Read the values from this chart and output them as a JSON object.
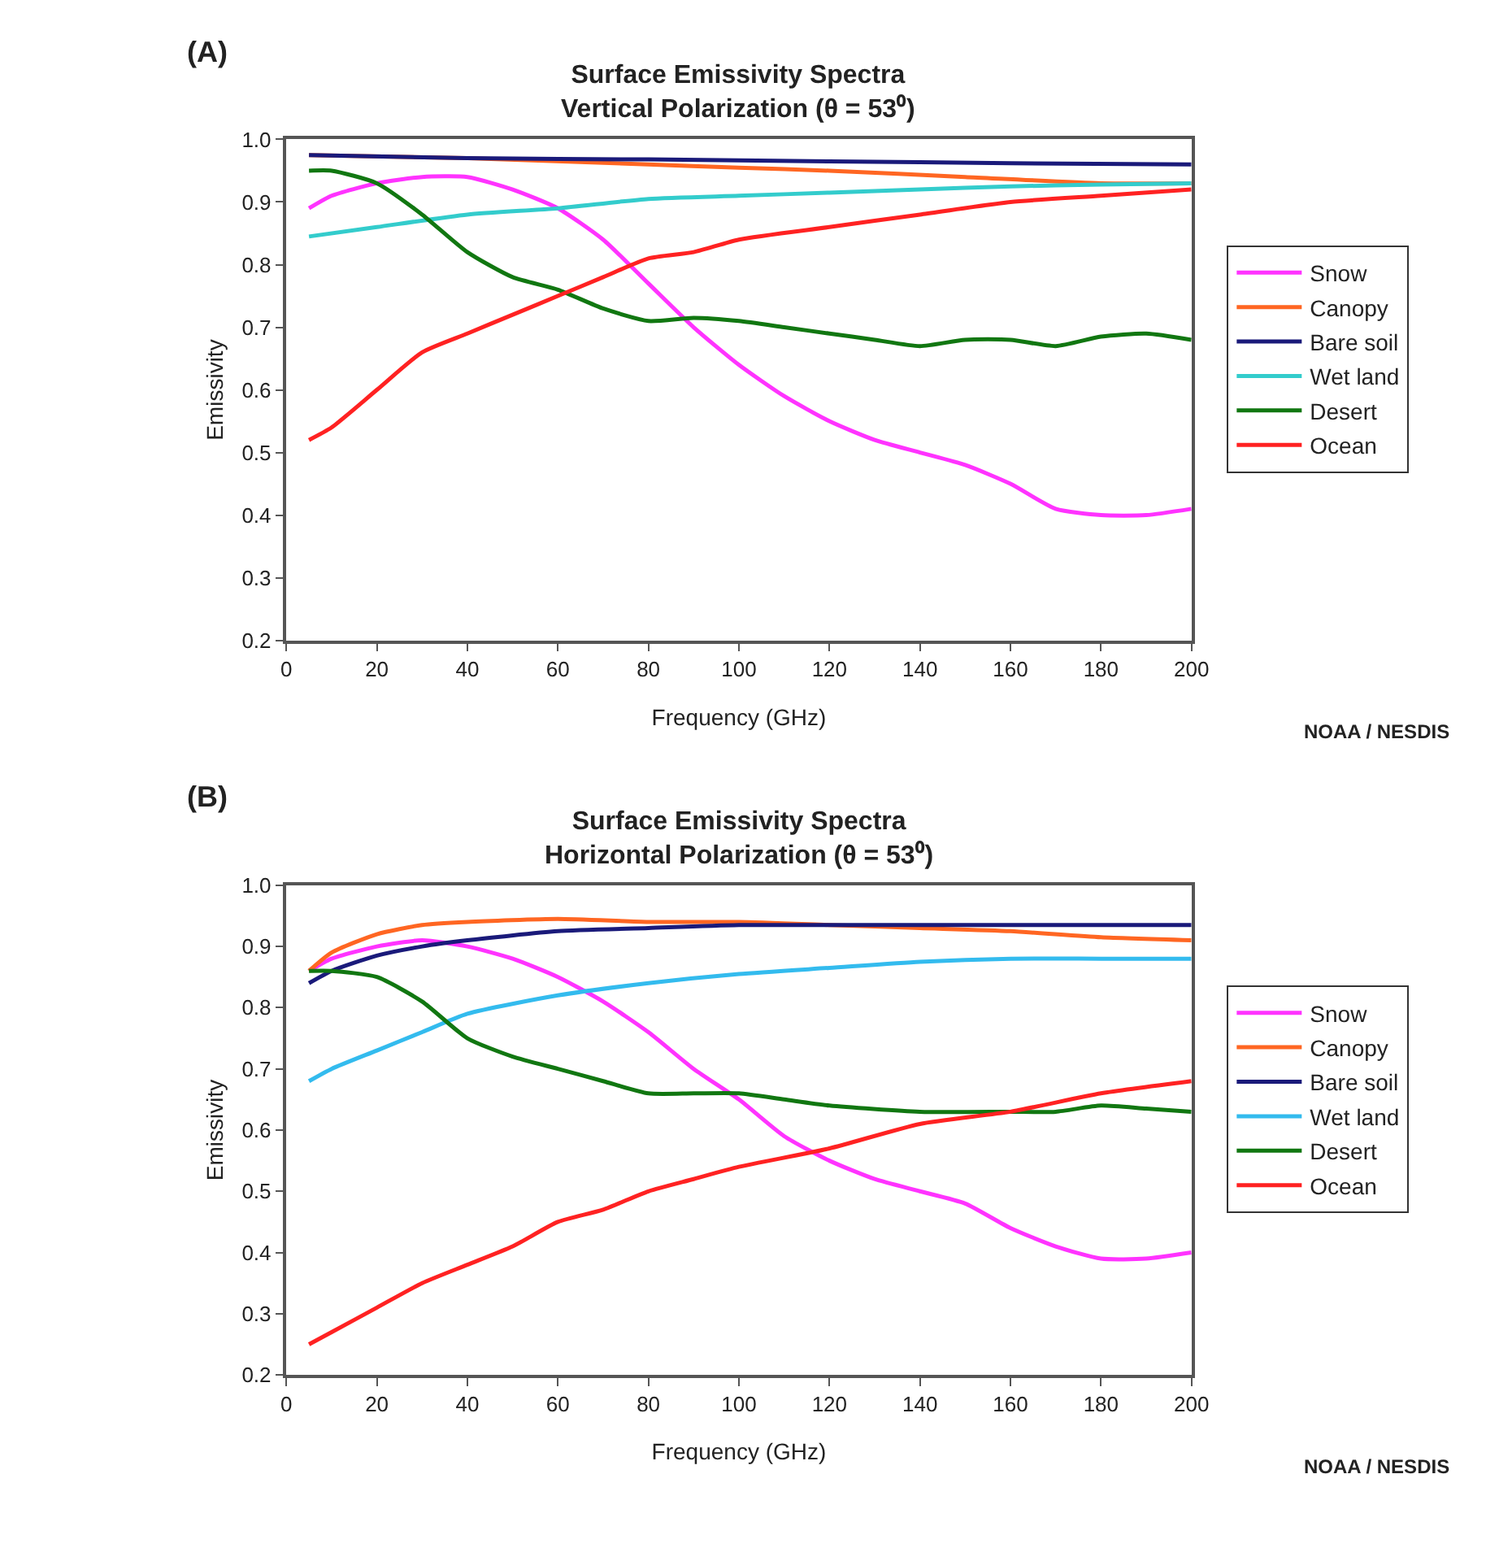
{
  "chart_data": [
    {
      "type": "line",
      "title": "Surface Emissivity Spectra\nVertical Polarization (θ = 53⁰)",
      "xlabel": "Frequency (GHz)",
      "ylabel": "Emissivity",
      "xlim": [
        0,
        200
      ],
      "ylim": [
        0.2,
        1.0
      ],
      "xticks": [
        0,
        20,
        40,
        60,
        80,
        100,
        120,
        140,
        160,
        180,
        200
      ],
      "yticks": [
        {
          "value": 0.2,
          "label": "0.2"
        },
        {
          "value": 0.3,
          "label": "0.3"
        },
        {
          "value": 0.4,
          "label": "0.4"
        },
        {
          "value": 0.5,
          "label": "0.5"
        },
        {
          "value": 0.6,
          "label": "0.6"
        },
        {
          "value": 0.7,
          "label": "0.7"
        },
        {
          "value": 0.8,
          "label": "0.8"
        },
        {
          "value": 0.9,
          "label": "0.9"
        },
        {
          "value": 1.0,
          "label": "1.0"
        }
      ],
      "legend": "right",
      "marker": "none",
      "line_style": "solid",
      "annotations": [
        "(A)",
        "NOAA / NESDIS"
      ],
      "series": [
        {
          "name": "Snow",
          "color": "#ff33ff",
          "x": [
            5,
            10,
            20,
            30,
            40,
            50,
            60,
            70,
            80,
            90,
            100,
            110,
            120,
            130,
            140,
            150,
            160,
            170,
            180,
            190,
            200
          ],
          "values": [
            0.89,
            0.91,
            0.93,
            0.94,
            0.94,
            0.92,
            0.89,
            0.84,
            0.77,
            0.7,
            0.64,
            0.59,
            0.55,
            0.52,
            0.5,
            0.48,
            0.45,
            0.41,
            0.4,
            0.4,
            0.41
          ]
        },
        {
          "name": "Canopy",
          "color": "#ff6622",
          "x": [
            5,
            40,
            80,
            100,
            120,
            150,
            180,
            200
          ],
          "values": [
            0.975,
            0.97,
            0.96,
            0.955,
            0.95,
            0.94,
            0.93,
            0.93
          ]
        },
        {
          "name": "Bare soil",
          "color": "#1a1a7a",
          "x": [
            5,
            40,
            80,
            120,
            160,
            200
          ],
          "values": [
            0.975,
            0.97,
            0.968,
            0.965,
            0.962,
            0.96
          ]
        },
        {
          "name": "Wet land",
          "color": "#33cccc",
          "x": [
            5,
            20,
            40,
            60,
            80,
            100,
            120,
            140,
            160,
            180,
            200
          ],
          "values": [
            0.845,
            0.86,
            0.88,
            0.89,
            0.905,
            0.91,
            0.915,
            0.92,
            0.925,
            0.928,
            0.93
          ]
        },
        {
          "name": "Desert",
          "color": "#117711",
          "x": [
            5,
            10,
            20,
            30,
            40,
            50,
            60,
            70,
            80,
            90,
            100,
            110,
            120,
            130,
            140,
            150,
            160,
            170,
            180,
            190,
            200
          ],
          "values": [
            0.95,
            0.95,
            0.93,
            0.88,
            0.82,
            0.78,
            0.76,
            0.73,
            0.71,
            0.715,
            0.71,
            0.7,
            0.69,
            0.68,
            0.67,
            0.68,
            0.68,
            0.67,
            0.685,
            0.69,
            0.68
          ]
        },
        {
          "name": "Ocean",
          "color": "#ff2222",
          "x": [
            5,
            10,
            20,
            30,
            40,
            50,
            60,
            70,
            80,
            90,
            100,
            120,
            140,
            160,
            180,
            200
          ],
          "values": [
            0.52,
            0.54,
            0.6,
            0.66,
            0.69,
            0.72,
            0.75,
            0.78,
            0.81,
            0.82,
            0.84,
            0.86,
            0.88,
            0.9,
            0.91,
            0.92
          ]
        }
      ]
    },
    {
      "type": "line",
      "title": "Surface Emissivity Spectra\nHorizontal Polarization (θ = 53⁰)",
      "xlabel": "Frequency (GHz)",
      "ylabel": "Emissivity",
      "xlim": [
        0,
        200
      ],
      "ylim": [
        0.2,
        1.0
      ],
      "xticks": [
        0,
        20,
        40,
        60,
        80,
        100,
        120,
        140,
        160,
        180,
        200
      ],
      "yticks": [
        {
          "value": 0.2,
          "label": "0.2"
        },
        {
          "value": 0.3,
          "label": "0.3"
        },
        {
          "value": 0.4,
          "label": "0.4"
        },
        {
          "value": 0.5,
          "label": "0.5"
        },
        {
          "value": 0.6,
          "label": "0.6"
        },
        {
          "value": 0.7,
          "label": "0.7"
        },
        {
          "value": 0.8,
          "label": "0.8"
        },
        {
          "value": 0.9,
          "label": "0.9"
        },
        {
          "value": 1.0,
          "label": "1.0"
        }
      ],
      "legend": "right",
      "marker": "none",
      "line_style": "solid",
      "annotations": [
        "(B)",
        "NOAA / NESDIS"
      ],
      "series": [
        {
          "name": "Snow",
          "color": "#ff33ff",
          "x": [
            5,
            10,
            20,
            30,
            40,
            50,
            60,
            70,
            80,
            90,
            100,
            110,
            120,
            130,
            140,
            150,
            160,
            170,
            180,
            190,
            200
          ],
          "values": [
            0.86,
            0.88,
            0.9,
            0.91,
            0.9,
            0.88,
            0.85,
            0.81,
            0.76,
            0.7,
            0.65,
            0.59,
            0.55,
            0.52,
            0.5,
            0.48,
            0.44,
            0.41,
            0.39,
            0.39,
            0.4
          ]
        },
        {
          "name": "Canopy",
          "color": "#ff6622",
          "x": [
            5,
            10,
            20,
            30,
            40,
            60,
            80,
            100,
            120,
            140,
            160,
            180,
            200
          ],
          "values": [
            0.86,
            0.89,
            0.92,
            0.935,
            0.94,
            0.945,
            0.94,
            0.94,
            0.935,
            0.93,
            0.925,
            0.915,
            0.91
          ]
        },
        {
          "name": "Bare soil",
          "color": "#1a1a7a",
          "x": [
            5,
            10,
            20,
            30,
            40,
            60,
            80,
            100,
            200
          ],
          "values": [
            0.84,
            0.86,
            0.885,
            0.9,
            0.91,
            0.925,
            0.93,
            0.935,
            0.935
          ]
        },
        {
          "name": "Wet land",
          "color": "#33bbee",
          "x": [
            5,
            10,
            20,
            30,
            40,
            60,
            80,
            100,
            120,
            140,
            160,
            180,
            200
          ],
          "values": [
            0.68,
            0.7,
            0.73,
            0.76,
            0.79,
            0.82,
            0.84,
            0.855,
            0.865,
            0.875,
            0.88,
            0.88,
            0.88
          ]
        },
        {
          "name": "Desert",
          "color": "#117711",
          "x": [
            5,
            10,
            20,
            30,
            40,
            50,
            60,
            70,
            80,
            90,
            100,
            110,
            120,
            140,
            160,
            170,
            180,
            190,
            200
          ],
          "values": [
            0.86,
            0.86,
            0.85,
            0.81,
            0.75,
            0.72,
            0.7,
            0.68,
            0.66,
            0.66,
            0.66,
            0.65,
            0.64,
            0.63,
            0.63,
            0.63,
            0.64,
            0.635,
            0.63
          ]
        },
        {
          "name": "Ocean",
          "color": "#ff2222",
          "x": [
            5,
            10,
            20,
            30,
            40,
            50,
            60,
            70,
            80,
            90,
            100,
            120,
            140,
            160,
            180,
            200
          ],
          "values": [
            0.25,
            0.27,
            0.31,
            0.35,
            0.38,
            0.41,
            0.45,
            0.47,
            0.5,
            0.52,
            0.54,
            0.57,
            0.61,
            0.63,
            0.66,
            0.68
          ]
        }
      ]
    }
  ]
}
